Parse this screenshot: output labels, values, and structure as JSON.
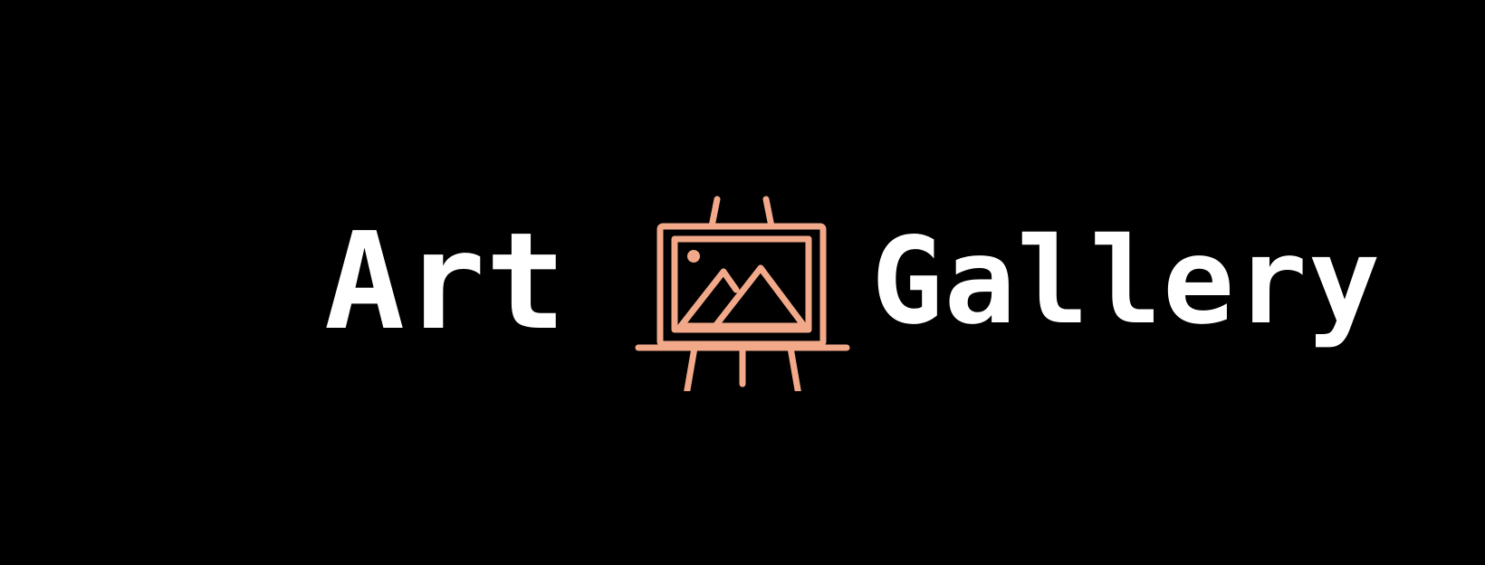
{
  "logo": {
    "word_left": "Art",
    "word_right": "Gallery",
    "icon": "easel-painting-icon",
    "colors": {
      "background": "#000000",
      "text": "#ffffff",
      "icon_accent": "#f2a98a"
    }
  }
}
